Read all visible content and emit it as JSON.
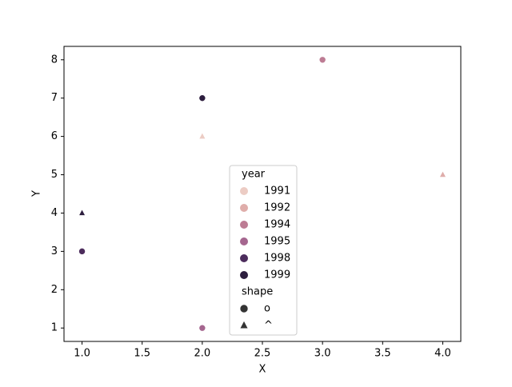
{
  "chart_data": {
    "type": "scatter",
    "x_label": "X",
    "y_label": "Y",
    "x": [
      1.0,
      1.0,
      2.0,
      2.0,
      2.0,
      3.0,
      4.0
    ],
    "y": [
      4,
      3,
      7,
      6,
      1,
      8,
      5
    ],
    "year": [
      1999,
      1998,
      1999,
      1991,
      1995,
      1994,
      1992
    ],
    "shape": [
      "^",
      "o",
      "o",
      "^",
      "o",
      "o",
      "^"
    ],
    "xlim": [
      0.85,
      4.15
    ],
    "ylim": [
      0.65,
      8.35
    ],
    "xticks": [
      {
        "value": 1.0,
        "label": "1.0"
      },
      {
        "value": 1.5,
        "label": "1.5"
      },
      {
        "value": 2.0,
        "label": "2.0"
      },
      {
        "value": 2.5,
        "label": "2.5"
      },
      {
        "value": 3.0,
        "label": "3.0"
      },
      {
        "value": 3.5,
        "label": "3.5"
      },
      {
        "value": 4.0,
        "label": "4.0"
      }
    ],
    "yticks": [
      1,
      2,
      3,
      4,
      5,
      6,
      7,
      8
    ],
    "hue_title": "year",
    "hue_levels": [
      1991,
      1992,
      1994,
      1995,
      1998,
      1999
    ],
    "hue_colors": [
      "#ecccc4",
      "#dfadaa",
      "#bd7c94",
      "#a5668f",
      "#4c2c5c",
      "#2d1e3e"
    ],
    "style_title": "shape",
    "style_levels": [
      "o",
      "^"
    ]
  }
}
